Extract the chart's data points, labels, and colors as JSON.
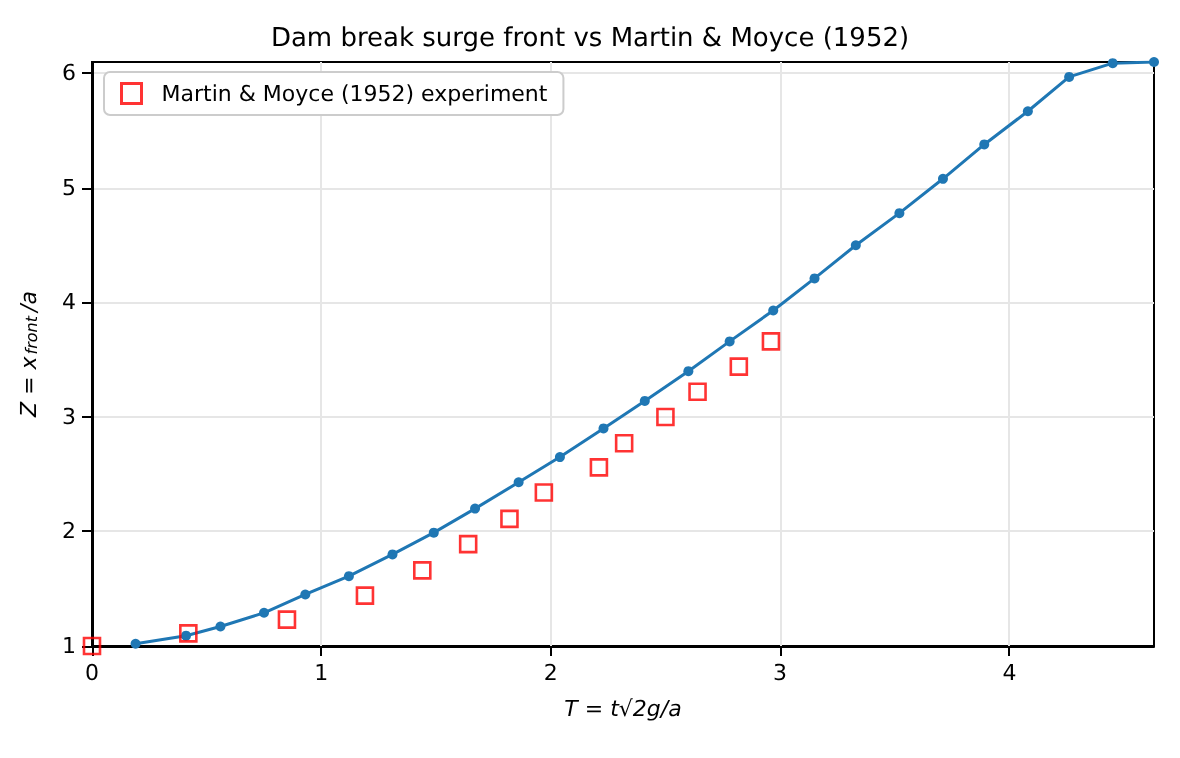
{
  "chart_data": {
    "type": "line",
    "title": "Dam break surge front vs Martin & Moyce (1952)",
    "xlabel": "T = t√2g/a",
    "ylabel": "Z = x$_{front}$/a",
    "xlim": [
      0,
      4.63
    ],
    "ylim": [
      1,
      6.1
    ],
    "xticks": [
      0,
      1,
      2,
      3,
      4
    ],
    "yticks": [
      1,
      2,
      3,
      4,
      5,
      6
    ],
    "grid": true,
    "legend": "top left",
    "series": [
      {
        "color": "#1f77b4",
        "marker": "circle",
        "line_style": "solid",
        "x": [
          0.19,
          0.41,
          0.56,
          0.75,
          0.93,
          1.12,
          1.31,
          1.49,
          1.67,
          1.86,
          2.04,
          2.23,
          2.41,
          2.6,
          2.78,
          2.97,
          3.15,
          3.33,
          3.52,
          3.71,
          3.89,
          4.08,
          4.26,
          4.45,
          4.63
        ],
        "values": [
          1.02,
          1.09,
          1.17,
          1.29,
          1.45,
          1.61,
          1.8,
          1.99,
          2.2,
          2.43,
          2.65,
          2.9,
          3.14,
          3.4,
          3.66,
          3.93,
          4.21,
          4.5,
          4.78,
          5.08,
          5.38,
          5.67,
          5.97,
          6.09,
          6.1
        ]
      },
      {
        "type": "scatter",
        "name": "Martin & Moyce (1952) experiment",
        "color": "#ff0000",
        "marker": "square",
        "x": [
          0,
          0.42,
          0.85,
          1.19,
          1.44,
          1.64,
          1.82,
          1.97,
          2.21,
          2.32,
          2.5,
          2.64,
          2.82,
          2.96
        ],
        "values": [
          1.0,
          1.11,
          1.23,
          1.44,
          1.66,
          1.89,
          2.11,
          2.34,
          2.56,
          2.77,
          3.0,
          3.22,
          3.44,
          3.66
        ]
      }
    ]
  }
}
